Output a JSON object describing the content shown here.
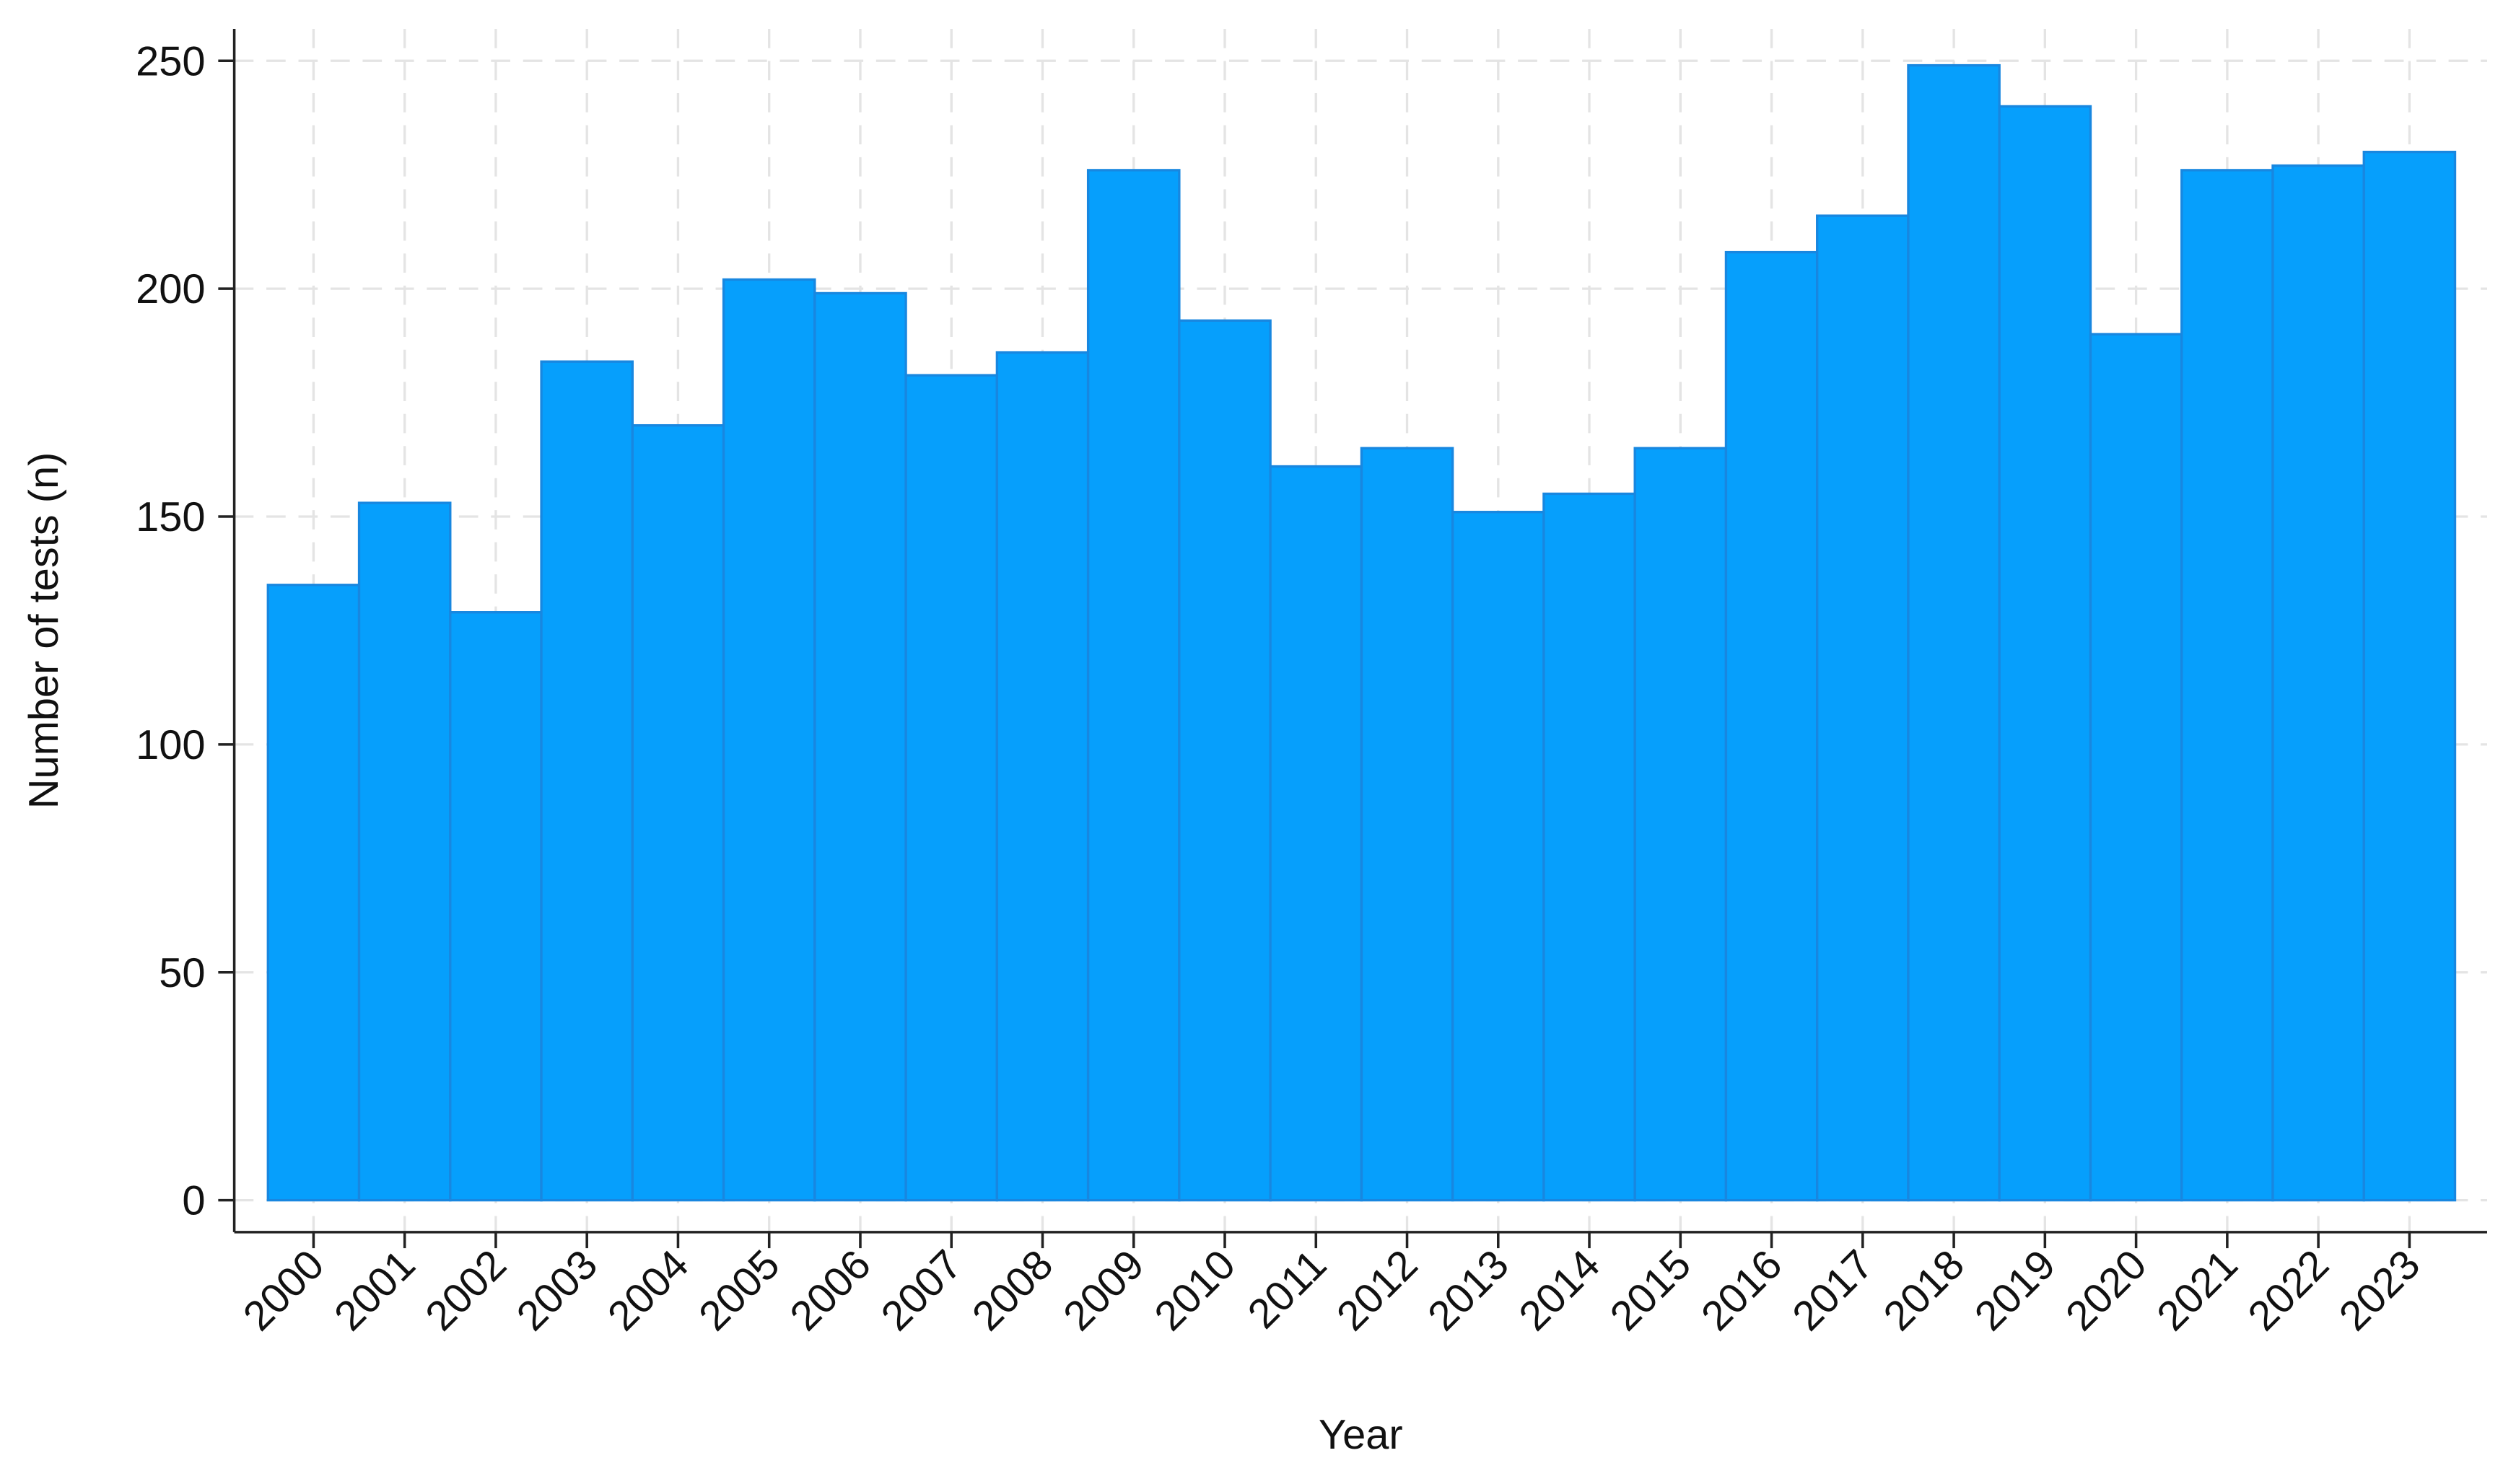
{
  "chart_data": {
    "type": "bar",
    "x_label": "Year",
    "y_label": "Number of tests (n)",
    "categories": [
      "2000",
      "2001",
      "2002",
      "2003",
      "2004",
      "2005",
      "2006",
      "2007",
      "2008",
      "2009",
      "2010",
      "2011",
      "2012",
      "2013",
      "2014",
      "2015",
      "2016",
      "2017",
      "2018",
      "2019",
      "2020",
      "2021",
      "2022",
      "2023"
    ],
    "values": [
      135,
      153,
      129,
      184,
      170,
      202,
      199,
      181,
      186,
      226,
      193,
      161,
      165,
      151,
      155,
      165,
      208,
      216,
      249,
      240,
      190,
      226,
      227,
      230
    ],
    "color": "#069ffc",
    "edge_color": "#1887e0",
    "ylim": [
      -7,
      257
    ],
    "yticks": [
      0,
      50,
      100,
      150,
      200,
      250
    ],
    "grid": true
  }
}
